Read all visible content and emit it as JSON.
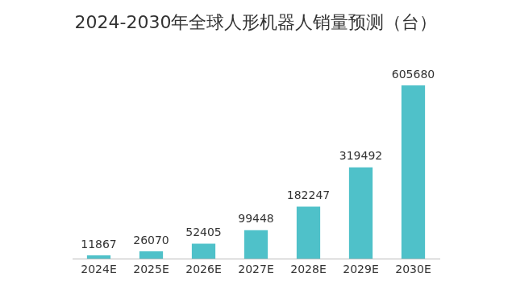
{
  "chart_data": {
    "type": "bar",
    "title": "2024-2030年全球人形机器人销量预测（台）",
    "categories": [
      "2024E",
      "2025E",
      "2026E",
      "2027E",
      "2028E",
      "2029E",
      "2030E"
    ],
    "values": [
      11867,
      26070,
      52405,
      99448,
      182247,
      319492,
      605680
    ],
    "color": "#4fc1c9",
    "data_labels": true,
    "tick_labels": "x",
    "grid": false
  }
}
